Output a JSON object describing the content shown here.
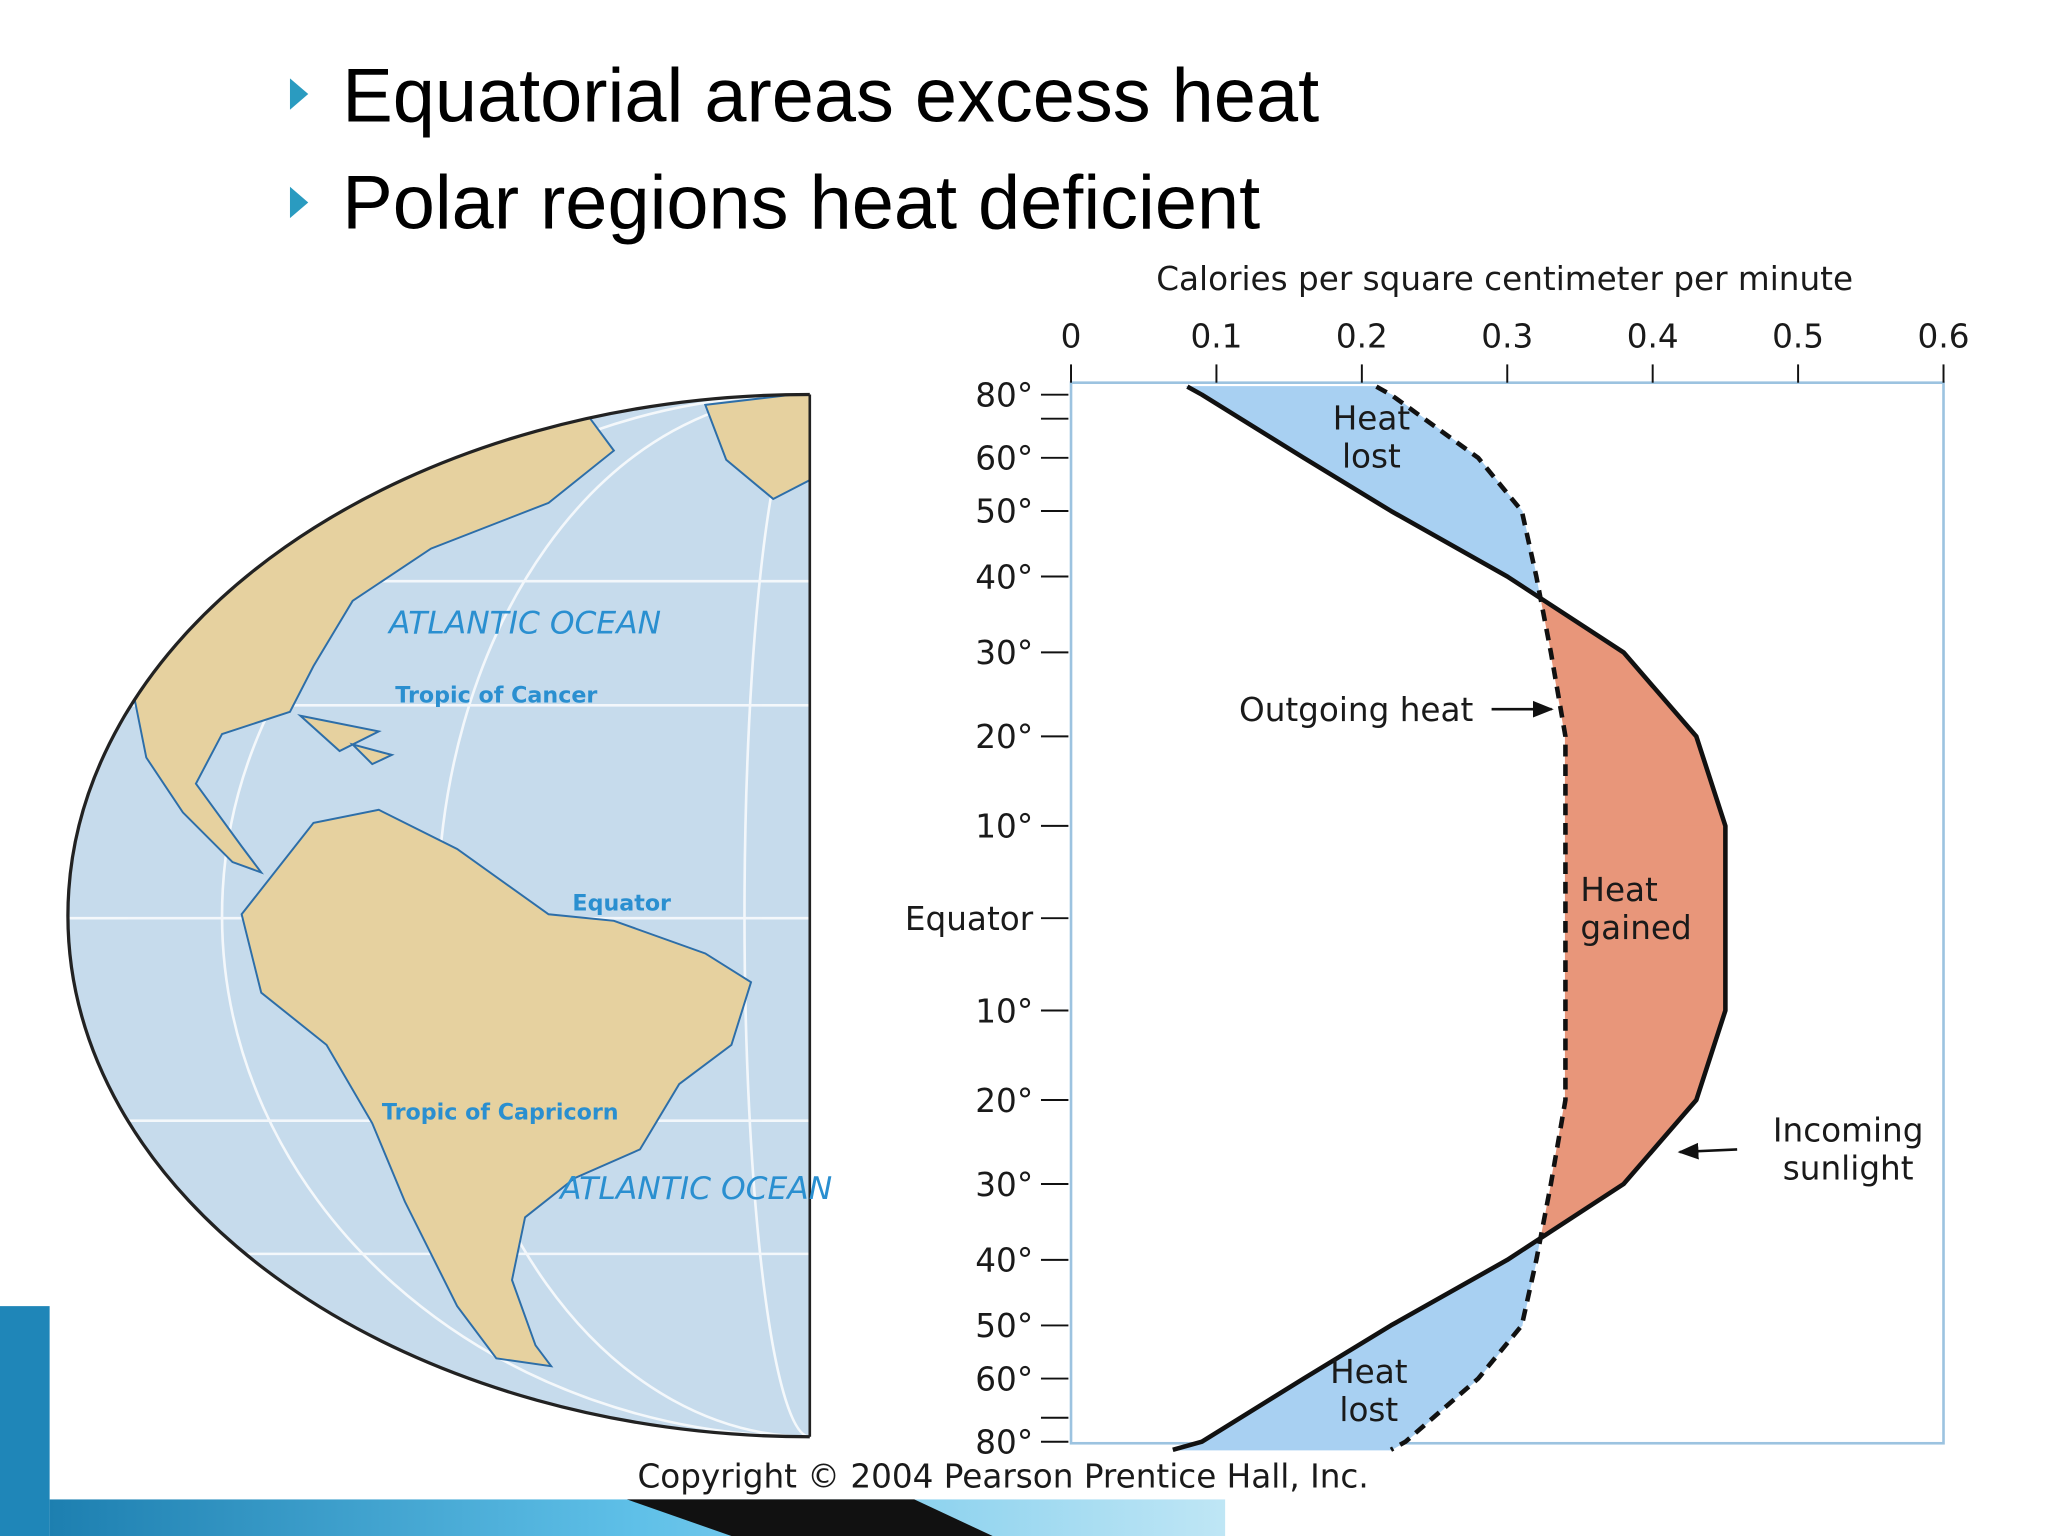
{
  "slide": {
    "bullets": [
      "Equatorial areas excess heat",
      "Polar regions heat deficient"
    ],
    "copyright": "Copyright © 2004 Pearson Prentice Hall, Inc."
  },
  "map": {
    "labels": [
      "ATLANTIC OCEAN",
      "Tropic of Cancer",
      "Equator",
      "Tropic of Capricorn",
      "ATLANTIC OCEAN"
    ]
  },
  "chart_data": {
    "type": "line",
    "x_label": "Calories per square centimeter per minute",
    "xlim": [
      0,
      0.6
    ],
    "xticks": [
      0,
      0.1,
      0.2,
      0.3,
      0.4,
      0.5,
      0.6
    ],
    "ylim": [
      -90,
      90
    ],
    "yscale": "sine",
    "yticks": [
      {
        "value": 80,
        "label": "80°"
      },
      {
        "value": 60,
        "label": "60°"
      },
      {
        "value": 50,
        "label": "50°"
      },
      {
        "value": 40,
        "label": "40°"
      },
      {
        "value": 30,
        "label": "30°"
      },
      {
        "value": 20,
        "label": "20°"
      },
      {
        "value": 10,
        "label": "10°"
      },
      {
        "value": 0,
        "label": "Equator"
      },
      {
        "value": -10,
        "label": "10°"
      },
      {
        "value": -20,
        "label": "20°"
      },
      {
        "value": -30,
        "label": "30°"
      },
      {
        "value": -40,
        "label": "40°"
      },
      {
        "value": -50,
        "label": "50°"
      },
      {
        "value": -60,
        "label": "60°"
      },
      {
        "value": -80,
        "label": "80°"
      }
    ],
    "minor_yticks": [
      70,
      -70
    ],
    "latitudes": [
      90,
      80,
      60,
      50,
      40,
      30,
      20,
      10,
      0,
      -10,
      -20,
      -30,
      -40,
      -50,
      -60,
      -80,
      -90
    ],
    "series": [
      {
        "name": "Incoming sunlight",
        "color": "#111111",
        "dash": false,
        "values": [
          0.08,
          0.09,
          0.16,
          0.22,
          0.3,
          0.38,
          0.43,
          0.45,
          0.45,
          0.45,
          0.43,
          0.38,
          0.3,
          0.22,
          0.16,
          0.09,
          0.07
        ]
      },
      {
        "name": "Outgoing heat",
        "color": "#111111",
        "dash": true,
        "values": [
          0.21,
          0.22,
          0.28,
          0.31,
          0.32,
          0.33,
          0.34,
          0.34,
          0.34,
          0.34,
          0.34,
          0.33,
          0.32,
          0.31,
          0.28,
          0.23,
          0.22
        ]
      }
    ],
    "surplus_color": "#e8967a",
    "deficit_color": "#a8d0f2",
    "annotations": [
      "Heat lost",
      "Heat gained",
      "Heat lost"
    ]
  }
}
